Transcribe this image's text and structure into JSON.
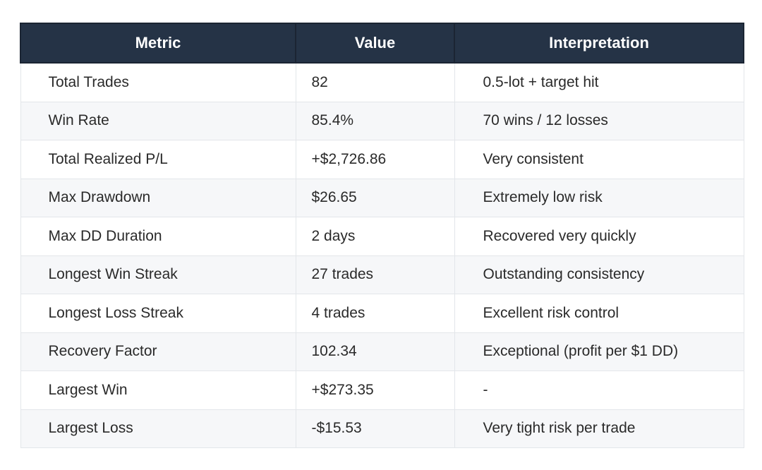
{
  "table": {
    "headers": [
      "Metric",
      "Value",
      "Interpretation"
    ],
    "rows": [
      [
        "Total Trades",
        "82",
        "0.5-lot + target hit"
      ],
      [
        "Win Rate",
        "85.4%",
        "70 wins / 12 losses"
      ],
      [
        "Total Realized P/L",
        "+$2,726.86",
        "Very consistent"
      ],
      [
        "Max Drawdown",
        "$26.65",
        "Extremely low risk"
      ],
      [
        "Max DD Duration",
        "2 days",
        "Recovered very quickly"
      ],
      [
        "Longest Win Streak",
        "27 trades",
        "Outstanding consistency"
      ],
      [
        "Longest Loss Streak",
        "4 trades",
        "Excellent risk control"
      ],
      [
        "Recovery Factor",
        "102.34",
        "Exceptional (profit per $1 DD)"
      ],
      [
        "Largest Win",
        "+$273.35",
        "-"
      ],
      [
        "Largest Loss",
        "-$15.53",
        "Very tight risk per trade"
      ]
    ]
  },
  "colors": {
    "header_bg": "#253346",
    "header_text": "#ffffff",
    "stripe": "#f6f7f9",
    "border": "#e3e6ea"
  }
}
